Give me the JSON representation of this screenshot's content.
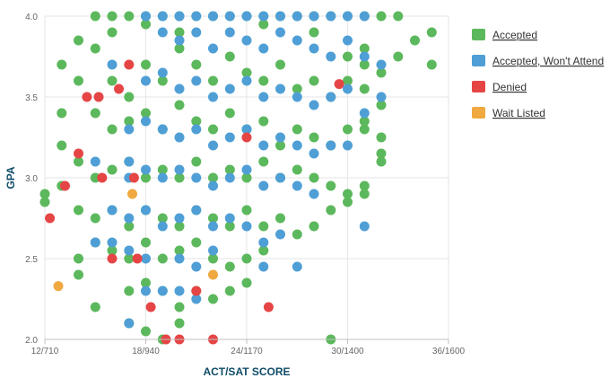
{
  "chart_data": {
    "type": "scatter",
    "xlabel": "ACT/SAT SCORE",
    "ylabel": "GPA",
    "x_ticks": [
      {
        "value": 12,
        "label": "12/710"
      },
      {
        "value": 18,
        "label": "18/940"
      },
      {
        "value": 24,
        "label": "24/1170"
      },
      {
        "value": 30,
        "label": "30/1400"
      },
      {
        "value": 36,
        "label": "36/1600"
      }
    ],
    "y_ticks": [
      {
        "value": 2.0,
        "label": "2.0"
      },
      {
        "value": 2.5,
        "label": "2.5"
      },
      {
        "value": 3.0,
        "label": "3.0"
      },
      {
        "value": 3.5,
        "label": "3.5"
      },
      {
        "value": 4.0,
        "label": "4.0"
      }
    ],
    "xlim": [
      12,
      36
    ],
    "ylim": [
      2.0,
      4.0
    ],
    "grid": true,
    "legend_position": "right",
    "series": [
      {
        "name": "Accepted",
        "color": "#5cb85c",
        "points": [
          [
            15,
            4.0
          ],
          [
            16,
            4.0
          ],
          [
            17,
            4.0
          ],
          [
            18,
            4.0
          ],
          [
            19,
            4.0
          ],
          [
            20,
            4.0
          ],
          [
            21,
            4.0
          ],
          [
            22,
            4.0
          ],
          [
            23,
            4.0
          ],
          [
            24,
            4.0
          ],
          [
            25,
            4.0
          ],
          [
            26,
            4.0
          ],
          [
            27,
            4.0
          ],
          [
            28,
            4.0
          ],
          [
            29,
            4.0
          ],
          [
            30,
            4.0
          ],
          [
            31,
            4.0
          ],
          [
            32,
            4.0
          ],
          [
            33,
            4.0
          ],
          [
            14,
            3.85
          ],
          [
            16,
            3.9
          ],
          [
            18,
            3.95
          ],
          [
            20,
            3.9
          ],
          [
            25,
            3.95
          ],
          [
            28,
            3.9
          ],
          [
            31,
            3.8
          ],
          [
            34,
            3.85
          ],
          [
            35,
            3.9
          ],
          [
            35,
            3.7
          ],
          [
            33,
            3.75
          ],
          [
            32,
            3.65
          ],
          [
            31,
            3.7
          ],
          [
            16,
            3.6
          ],
          [
            17,
            3.5
          ],
          [
            18,
            3.7
          ],
          [
            19,
            3.6
          ],
          [
            20,
            3.8
          ],
          [
            21,
            3.7
          ],
          [
            22,
            3.6
          ],
          [
            23,
            3.75
          ],
          [
            24,
            3.65
          ],
          [
            25,
            3.6
          ],
          [
            26,
            3.7
          ],
          [
            27,
            3.55
          ],
          [
            28,
            3.6
          ],
          [
            29,
            3.5
          ],
          [
            30,
            3.6
          ],
          [
            31,
            3.55
          ],
          [
            32,
            3.45
          ],
          [
            15,
            3.4
          ],
          [
            16,
            3.3
          ],
          [
            17,
            3.35
          ],
          [
            18,
            3.4
          ],
          [
            19,
            3.3
          ],
          [
            20,
            3.45
          ],
          [
            21,
            3.35
          ],
          [
            22,
            3.3
          ],
          [
            23,
            3.4
          ],
          [
            24,
            3.3
          ],
          [
            25,
            3.35
          ],
          [
            26,
            3.2
          ],
          [
            27,
            3.3
          ],
          [
            28,
            3.25
          ],
          [
            29,
            3.2
          ],
          [
            30,
            3.3
          ],
          [
            31,
            3.35
          ],
          [
            32,
            3.25
          ],
          [
            32,
            3.1
          ],
          [
            13,
            3.2
          ],
          [
            14,
            3.1
          ],
          [
            15,
            3.0
          ],
          [
            16,
            3.05
          ],
          [
            17,
            3.1
          ],
          [
            18,
            3.0
          ],
          [
            19,
            3.05
          ],
          [
            20,
            3.0
          ],
          [
            21,
            3.1
          ],
          [
            22,
            3.0
          ],
          [
            23,
            3.05
          ],
          [
            24,
            3.0
          ],
          [
            25,
            3.1
          ],
          [
            26,
            3.0
          ],
          [
            27,
            3.05
          ],
          [
            28,
            3.0
          ],
          [
            29,
            2.95
          ],
          [
            30,
            2.9
          ],
          [
            31,
            2.95
          ],
          [
            12,
            2.9
          ],
          [
            12,
            2.85
          ],
          [
            13,
            2.95
          ],
          [
            14,
            2.8
          ],
          [
            15,
            2.75
          ],
          [
            16,
            2.8
          ],
          [
            17,
            2.7
          ],
          [
            18,
            2.8
          ],
          [
            19,
            2.75
          ],
          [
            20,
            2.7
          ],
          [
            21,
            2.8
          ],
          [
            22,
            2.75
          ],
          [
            23,
            2.7
          ],
          [
            24,
            2.8
          ],
          [
            25,
            2.7
          ],
          [
            26,
            2.75
          ],
          [
            27,
            2.65
          ],
          [
            28,
            2.7
          ],
          [
            29,
            2.8
          ],
          [
            30,
            2.85
          ],
          [
            14,
            2.5
          ],
          [
            15,
            2.6
          ],
          [
            16,
            2.55
          ],
          [
            17,
            2.5
          ],
          [
            18,
            2.6
          ],
          [
            19,
            2.5
          ],
          [
            20,
            2.55
          ],
          [
            21,
            2.6
          ],
          [
            22,
            2.5
          ],
          [
            23,
            2.45
          ],
          [
            24,
            2.5
          ],
          [
            25,
            2.55
          ],
          [
            14,
            2.4
          ],
          [
            15,
            2.2
          ],
          [
            17,
            2.3
          ],
          [
            18,
            2.35
          ],
          [
            19,
            2.3
          ],
          [
            20,
            2.2
          ],
          [
            21,
            2.3
          ],
          [
            22,
            2.25
          ],
          [
            23,
            2.3
          ],
          [
            24,
            2.35
          ],
          [
            17,
            2.1
          ],
          [
            18,
            2.05
          ],
          [
            19,
            2.0
          ],
          [
            20,
            2.1
          ],
          [
            29,
            2.0
          ],
          [
            13,
            3.4
          ],
          [
            13,
            3.7
          ],
          [
            14,
            3.6
          ],
          [
            15,
            3.8
          ],
          [
            30,
            3.75
          ],
          [
            31,
            3.3
          ],
          [
            32,
            3.15
          ],
          [
            31,
            2.9
          ]
        ]
      },
      {
        "name": "Accepted, Won't Attend",
        "color": "#4f9fd6",
        "points": [
          [
            18,
            4.0
          ],
          [
            19,
            4.0
          ],
          [
            20,
            4.0
          ],
          [
            21,
            4.0
          ],
          [
            22,
            4.0
          ],
          [
            23,
            4.0
          ],
          [
            24,
            4.0
          ],
          [
            25,
            4.0
          ],
          [
            26,
            4.0
          ],
          [
            27,
            4.0
          ],
          [
            28,
            4.0
          ],
          [
            29,
            4.0
          ],
          [
            30,
            4.0
          ],
          [
            31,
            4.0
          ],
          [
            19,
            3.9
          ],
          [
            20,
            3.85
          ],
          [
            21,
            3.9
          ],
          [
            22,
            3.8
          ],
          [
            23,
            3.9
          ],
          [
            24,
            3.85
          ],
          [
            25,
            3.8
          ],
          [
            26,
            3.9
          ],
          [
            27,
            3.85
          ],
          [
            28,
            3.8
          ],
          [
            29,
            3.75
          ],
          [
            30,
            3.85
          ],
          [
            31,
            3.75
          ],
          [
            32,
            3.7
          ],
          [
            18,
            3.6
          ],
          [
            19,
            3.65
          ],
          [
            20,
            3.55
          ],
          [
            21,
            3.6
          ],
          [
            22,
            3.5
          ],
          [
            23,
            3.55
          ],
          [
            24,
            3.6
          ],
          [
            25,
            3.5
          ],
          [
            26,
            3.55
          ],
          [
            27,
            3.5
          ],
          [
            28,
            3.45
          ],
          [
            29,
            3.5
          ],
          [
            30,
            3.55
          ],
          [
            31,
            3.4
          ],
          [
            32,
            3.5
          ],
          [
            17,
            3.3
          ],
          [
            18,
            3.35
          ],
          [
            19,
            3.3
          ],
          [
            20,
            3.25
          ],
          [
            21,
            3.3
          ],
          [
            22,
            3.2
          ],
          [
            23,
            3.25
          ],
          [
            24,
            3.3
          ],
          [
            25,
            3.2
          ],
          [
            26,
            3.25
          ],
          [
            27,
            3.2
          ],
          [
            28,
            3.15
          ],
          [
            29,
            3.2
          ],
          [
            30,
            3.2
          ],
          [
            17,
            3.0
          ],
          [
            18,
            3.05
          ],
          [
            19,
            3.0
          ],
          [
            20,
            3.05
          ],
          [
            21,
            3.0
          ],
          [
            22,
            2.95
          ],
          [
            23,
            3.0
          ],
          [
            24,
            3.05
          ],
          [
            25,
            2.95
          ],
          [
            26,
            3.0
          ],
          [
            27,
            2.95
          ],
          [
            28,
            2.9
          ],
          [
            16,
            2.8
          ],
          [
            17,
            2.75
          ],
          [
            18,
            2.8
          ],
          [
            19,
            2.7
          ],
          [
            20,
            2.75
          ],
          [
            21,
            2.8
          ],
          [
            22,
            2.7
          ],
          [
            23,
            2.75
          ],
          [
            24,
            2.7
          ],
          [
            25,
            2.6
          ],
          [
            26,
            2.65
          ],
          [
            15,
            2.6
          ],
          [
            16,
            2.6
          ],
          [
            17,
            2.55
          ],
          [
            18,
            2.5
          ],
          [
            20,
            2.5
          ],
          [
            21,
            2.45
          ],
          [
            22,
            2.55
          ],
          [
            25,
            2.45
          ],
          [
            27,
            2.45
          ],
          [
            18,
            2.3
          ],
          [
            19,
            2.3
          ],
          [
            20,
            2.3
          ],
          [
            21,
            2.25
          ],
          [
            17,
            2.1
          ],
          [
            31,
            2.7
          ],
          [
            16,
            3.7
          ],
          [
            17,
            3.1
          ],
          [
            15,
            3.1
          ]
        ]
      },
      {
        "name": "Denied",
        "color": "#e64545",
        "points": [
          [
            12.3,
            2.75
          ],
          [
            13.2,
            2.95
          ],
          [
            14,
            3.15
          ],
          [
            14.5,
            3.5
          ],
          [
            15.4,
            3.0
          ],
          [
            16,
            2.5
          ],
          [
            16.4,
            3.55
          ],
          [
            17,
            3.7
          ],
          [
            17.3,
            3.0
          ],
          [
            17.5,
            2.5
          ],
          [
            18.3,
            2.2
          ],
          [
            19.2,
            2.0
          ],
          [
            20,
            2.0
          ],
          [
            21,
            2.3
          ],
          [
            22,
            2.0
          ],
          [
            24,
            3.25
          ],
          [
            25.3,
            2.2
          ],
          [
            29.5,
            3.58
          ],
          [
            15.2,
            3.5
          ]
        ]
      },
      {
        "name": "Wait Listed",
        "color": "#f0a840",
        "points": [
          [
            12.8,
            2.33
          ],
          [
            22,
            2.4
          ],
          [
            17.2,
            2.9
          ]
        ]
      }
    ]
  }
}
